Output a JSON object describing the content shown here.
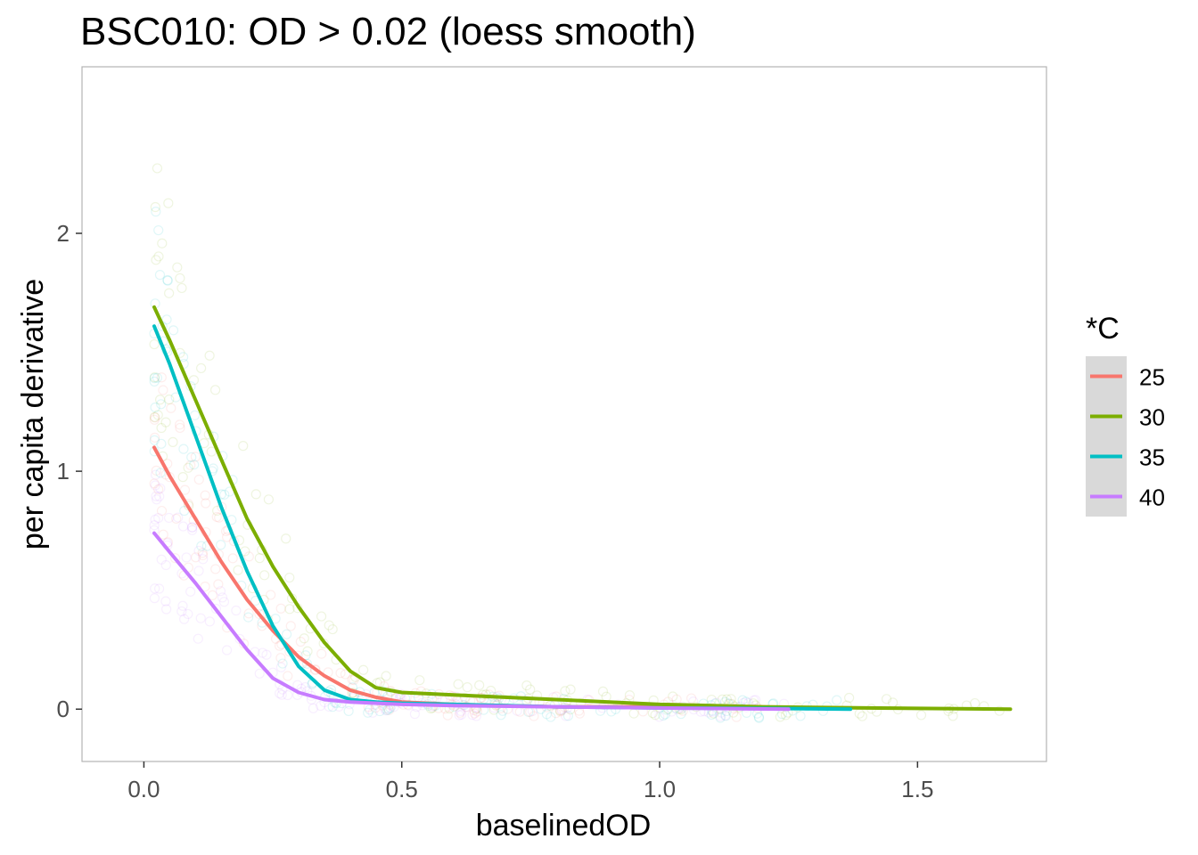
{
  "chart_data": {
    "type": "scatter",
    "title": "BSC010: OD > 0.02 (loess smooth)",
    "xlabel": "baselinedOD",
    "ylabel": "per capita derivative",
    "xlim": [
      -0.12,
      1.75
    ],
    "ylim": [
      -0.22,
      2.7
    ],
    "x_ticks": [
      0.0,
      0.5,
      1.0,
      1.5
    ],
    "x_tick_labels": [
      "0.0",
      "0.5",
      "1.0",
      "1.5"
    ],
    "y_ticks": [
      0,
      1,
      2
    ],
    "y_tick_labels": [
      "0",
      "1",
      "2"
    ],
    "grid": false,
    "panel_border": true,
    "legend": {
      "title": "*C",
      "placement": "right",
      "entries": [
        "25",
        "30",
        "35",
        "40"
      ]
    },
    "series": [
      {
        "name": "25",
        "color": "#F8766D",
        "x": [
          0.02,
          0.05,
          0.1,
          0.15,
          0.2,
          0.25,
          0.3,
          0.35,
          0.4,
          0.45,
          0.5,
          0.6,
          0.7,
          0.8,
          1.0,
          1.2
        ],
        "y": [
          1.1,
          0.98,
          0.8,
          0.62,
          0.46,
          0.33,
          0.22,
          0.14,
          0.08,
          0.05,
          0.03,
          0.02,
          0.015,
          0.01,
          0.01,
          0.005
        ]
      },
      {
        "name": "30",
        "color": "#7CAE00",
        "x": [
          0.02,
          0.05,
          0.1,
          0.15,
          0.2,
          0.25,
          0.3,
          0.35,
          0.4,
          0.45,
          0.5,
          0.6,
          0.7,
          0.8,
          1.0,
          1.2,
          1.4,
          1.68
        ],
        "y": [
          1.69,
          1.55,
          1.3,
          1.05,
          0.8,
          0.6,
          0.43,
          0.28,
          0.16,
          0.09,
          0.07,
          0.06,
          0.05,
          0.04,
          0.02,
          0.01,
          0.005,
          0.0
        ]
      },
      {
        "name": "35",
        "color": "#00BFC4",
        "x": [
          0.02,
          0.05,
          0.1,
          0.15,
          0.2,
          0.25,
          0.3,
          0.35,
          0.4,
          0.45,
          0.5,
          0.6,
          0.7,
          0.8,
          1.0,
          1.2,
          1.37
        ],
        "y": [
          1.61,
          1.45,
          1.15,
          0.85,
          0.58,
          0.35,
          0.18,
          0.08,
          0.04,
          0.03,
          0.025,
          0.02,
          0.015,
          0.01,
          0.005,
          0.003,
          0.0
        ]
      },
      {
        "name": "40",
        "color": "#C77CFF",
        "x": [
          0.02,
          0.05,
          0.1,
          0.15,
          0.2,
          0.25,
          0.3,
          0.35,
          0.4,
          0.5,
          0.6,
          0.8,
          1.0,
          1.25
        ],
        "y": [
          0.74,
          0.66,
          0.53,
          0.39,
          0.25,
          0.13,
          0.07,
          0.04,
          0.03,
          0.02,
          0.015,
          0.01,
          0.005,
          0.0
        ]
      }
    ]
  }
}
